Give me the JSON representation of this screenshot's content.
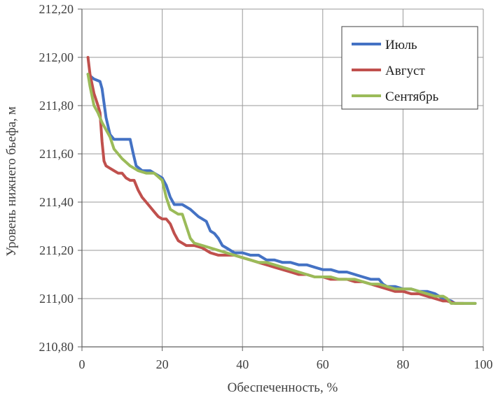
{
  "chart_data": {
    "type": "line",
    "xlabel": "Обеспеченность, %",
    "ylabel": "Уровень нижнего бьефа, м",
    "xlim": [
      0,
      100
    ],
    "ylim": [
      210.8,
      212.2
    ],
    "x_ticks": [
      "0",
      "20",
      "40",
      "60",
      "80",
      "100"
    ],
    "y_ticks": [
      "210,80",
      "211,00",
      "211,20",
      "211,40",
      "211,60",
      "211,80",
      "212,00",
      "212,20"
    ],
    "grid": true,
    "legend_position": "top-right",
    "series": [
      {
        "name": "Июль",
        "color": "#4472C4",
        "points": [
          [
            1.5,
            211.93
          ],
          [
            3,
            211.91
          ],
          [
            4.5,
            211.9
          ],
          [
            5,
            211.87
          ],
          [
            6,
            211.75
          ],
          [
            7,
            211.68
          ],
          [
            8,
            211.66
          ],
          [
            10,
            211.66
          ],
          [
            12,
            211.66
          ],
          [
            12.8,
            211.6
          ],
          [
            13.5,
            211.55
          ],
          [
            15,
            211.53
          ],
          [
            17,
            211.53
          ],
          [
            18,
            211.52
          ],
          [
            20,
            211.5
          ],
          [
            21,
            211.47
          ],
          [
            22,
            211.42
          ],
          [
            23,
            211.39
          ],
          [
            25,
            211.39
          ],
          [
            27,
            211.37
          ],
          [
            29,
            211.34
          ],
          [
            31,
            211.32
          ],
          [
            32,
            211.28
          ],
          [
            33,
            211.27
          ],
          [
            34,
            211.25
          ],
          [
            35,
            211.22
          ],
          [
            36,
            211.21
          ],
          [
            38,
            211.19
          ],
          [
            40,
            211.19
          ],
          [
            42,
            211.18
          ],
          [
            44,
            211.18
          ],
          [
            46,
            211.16
          ],
          [
            48,
            211.16
          ],
          [
            50,
            211.15
          ],
          [
            52,
            211.15
          ],
          [
            54,
            211.14
          ],
          [
            56,
            211.14
          ],
          [
            58,
            211.13
          ],
          [
            60,
            211.12
          ],
          [
            62,
            211.12
          ],
          [
            64,
            211.11
          ],
          [
            66,
            211.11
          ],
          [
            68,
            211.1
          ],
          [
            70,
            211.09
          ],
          [
            72,
            211.08
          ],
          [
            74,
            211.08
          ],
          [
            75,
            211.06
          ],
          [
            76,
            211.05
          ],
          [
            78,
            211.05
          ],
          [
            80,
            211.04
          ],
          [
            82,
            211.04
          ],
          [
            84,
            211.03
          ],
          [
            86,
            211.03
          ],
          [
            88,
            211.02
          ],
          [
            90,
            211.0
          ],
          [
            92,
            210.99
          ],
          [
            93,
            210.98
          ],
          [
            95,
            210.98
          ],
          [
            98,
            210.98
          ]
        ]
      },
      {
        "name": "Август",
        "color": "#C0504D",
        "points": [
          [
            1.5,
            212.0
          ],
          [
            2,
            211.93
          ],
          [
            3,
            211.85
          ],
          [
            4,
            211.8
          ],
          [
            4.5,
            211.77
          ],
          [
            5,
            211.65
          ],
          [
            5.5,
            211.57
          ],
          [
            6,
            211.55
          ],
          [
            7,
            211.54
          ],
          [
            8,
            211.53
          ],
          [
            9,
            211.52
          ],
          [
            10,
            211.52
          ],
          [
            11,
            211.5
          ],
          [
            12,
            211.49
          ],
          [
            13,
            211.49
          ],
          [
            14,
            211.45
          ],
          [
            15,
            211.42
          ],
          [
            16,
            211.4
          ],
          [
            17,
            211.38
          ],
          [
            18,
            211.36
          ],
          [
            19,
            211.34
          ],
          [
            20,
            211.33
          ],
          [
            21,
            211.33
          ],
          [
            22,
            211.31
          ],
          [
            23,
            211.27
          ],
          [
            24,
            211.24
          ],
          [
            25,
            211.23
          ],
          [
            26,
            211.22
          ],
          [
            28,
            211.22
          ],
          [
            30,
            211.21
          ],
          [
            32,
            211.19
          ],
          [
            34,
            211.18
          ],
          [
            36,
            211.18
          ],
          [
            38,
            211.18
          ],
          [
            40,
            211.17
          ],
          [
            42,
            211.16
          ],
          [
            44,
            211.15
          ],
          [
            46,
            211.14
          ],
          [
            48,
            211.13
          ],
          [
            50,
            211.12
          ],
          [
            52,
            211.11
          ],
          [
            54,
            211.1
          ],
          [
            56,
            211.1
          ],
          [
            58,
            211.09
          ],
          [
            60,
            211.09
          ],
          [
            62,
            211.08
          ],
          [
            64,
            211.08
          ],
          [
            66,
            211.08
          ],
          [
            68,
            211.07
          ],
          [
            70,
            211.07
          ],
          [
            72,
            211.06
          ],
          [
            74,
            211.05
          ],
          [
            76,
            211.04
          ],
          [
            78,
            211.03
          ],
          [
            80,
            211.03
          ],
          [
            82,
            211.02
          ],
          [
            84,
            211.02
          ],
          [
            86,
            211.01
          ],
          [
            88,
            211.0
          ],
          [
            90,
            210.99
          ],
          [
            91,
            210.99
          ],
          [
            93,
            210.98
          ],
          [
            95,
            210.98
          ]
        ]
      },
      {
        "name": "Сентябрь",
        "color": "#9BBB59",
        "points": [
          [
            1.5,
            211.93
          ],
          [
            2,
            211.88
          ],
          [
            3,
            211.8
          ],
          [
            4,
            211.77
          ],
          [
            5,
            211.73
          ],
          [
            6,
            211.7
          ],
          [
            7,
            211.67
          ],
          [
            8,
            211.62
          ],
          [
            9,
            211.6
          ],
          [
            10,
            211.58
          ],
          [
            12,
            211.55
          ],
          [
            14,
            211.53
          ],
          [
            16,
            211.52
          ],
          [
            18,
            211.52
          ],
          [
            20,
            211.49
          ],
          [
            21,
            211.42
          ],
          [
            22,
            211.37
          ],
          [
            23,
            211.36
          ],
          [
            24,
            211.35
          ],
          [
            25,
            211.35
          ],
          [
            26,
            211.3
          ],
          [
            27,
            211.25
          ],
          [
            28,
            211.23
          ],
          [
            30,
            211.22
          ],
          [
            32,
            211.21
          ],
          [
            34,
            211.2
          ],
          [
            36,
            211.19
          ],
          [
            38,
            211.18
          ],
          [
            40,
            211.17
          ],
          [
            42,
            211.16
          ],
          [
            44,
            211.15
          ],
          [
            46,
            211.15
          ],
          [
            48,
            211.14
          ],
          [
            50,
            211.13
          ],
          [
            52,
            211.12
          ],
          [
            54,
            211.11
          ],
          [
            56,
            211.1
          ],
          [
            58,
            211.09
          ],
          [
            60,
            211.09
          ],
          [
            62,
            211.09
          ],
          [
            64,
            211.08
          ],
          [
            66,
            211.08
          ],
          [
            68,
            211.08
          ],
          [
            70,
            211.07
          ],
          [
            72,
            211.06
          ],
          [
            74,
            211.06
          ],
          [
            76,
            211.05
          ],
          [
            78,
            211.04
          ],
          [
            80,
            211.04
          ],
          [
            82,
            211.04
          ],
          [
            84,
            211.03
          ],
          [
            86,
            211.02
          ],
          [
            88,
            211.01
          ],
          [
            90,
            211.01
          ],
          [
            91,
            211.0
          ],
          [
            92,
            210.98
          ],
          [
            94,
            210.98
          ],
          [
            96,
            210.98
          ],
          [
            98,
            210.98
          ]
        ]
      }
    ]
  }
}
